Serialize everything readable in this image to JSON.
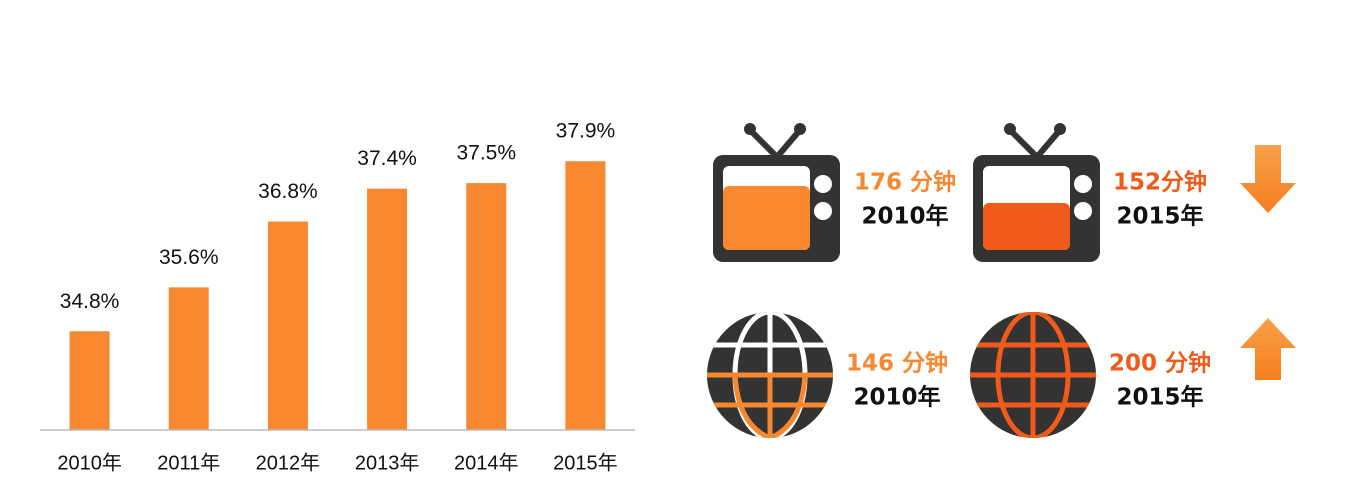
{
  "chart_data": {
    "type": "bar",
    "categories": [
      "2010年",
      "2011年",
      "2012年",
      "2013年",
      "2014年",
      "2015年"
    ],
    "values": [
      34.8,
      35.6,
      36.8,
      37.4,
      37.5,
      37.9
    ],
    "value_labels": [
      "34.8%",
      "35.6%",
      "36.8%",
      "37.4%",
      "37.5%",
      "37.9%"
    ],
    "color": "#f7882f",
    "ylim": [
      33,
      40
    ]
  },
  "infographic": {
    "tv": {
      "before": {
        "minutes": "176 分钟",
        "year": "2010年"
      },
      "after": {
        "minutes": "152分钟",
        "year": "2015年"
      }
    },
    "internet": {
      "before": {
        "minutes": "146 分钟",
        "year": "2010年"
      },
      "after": {
        "minutes": "200 分钟",
        "year": "2015年"
      }
    }
  }
}
